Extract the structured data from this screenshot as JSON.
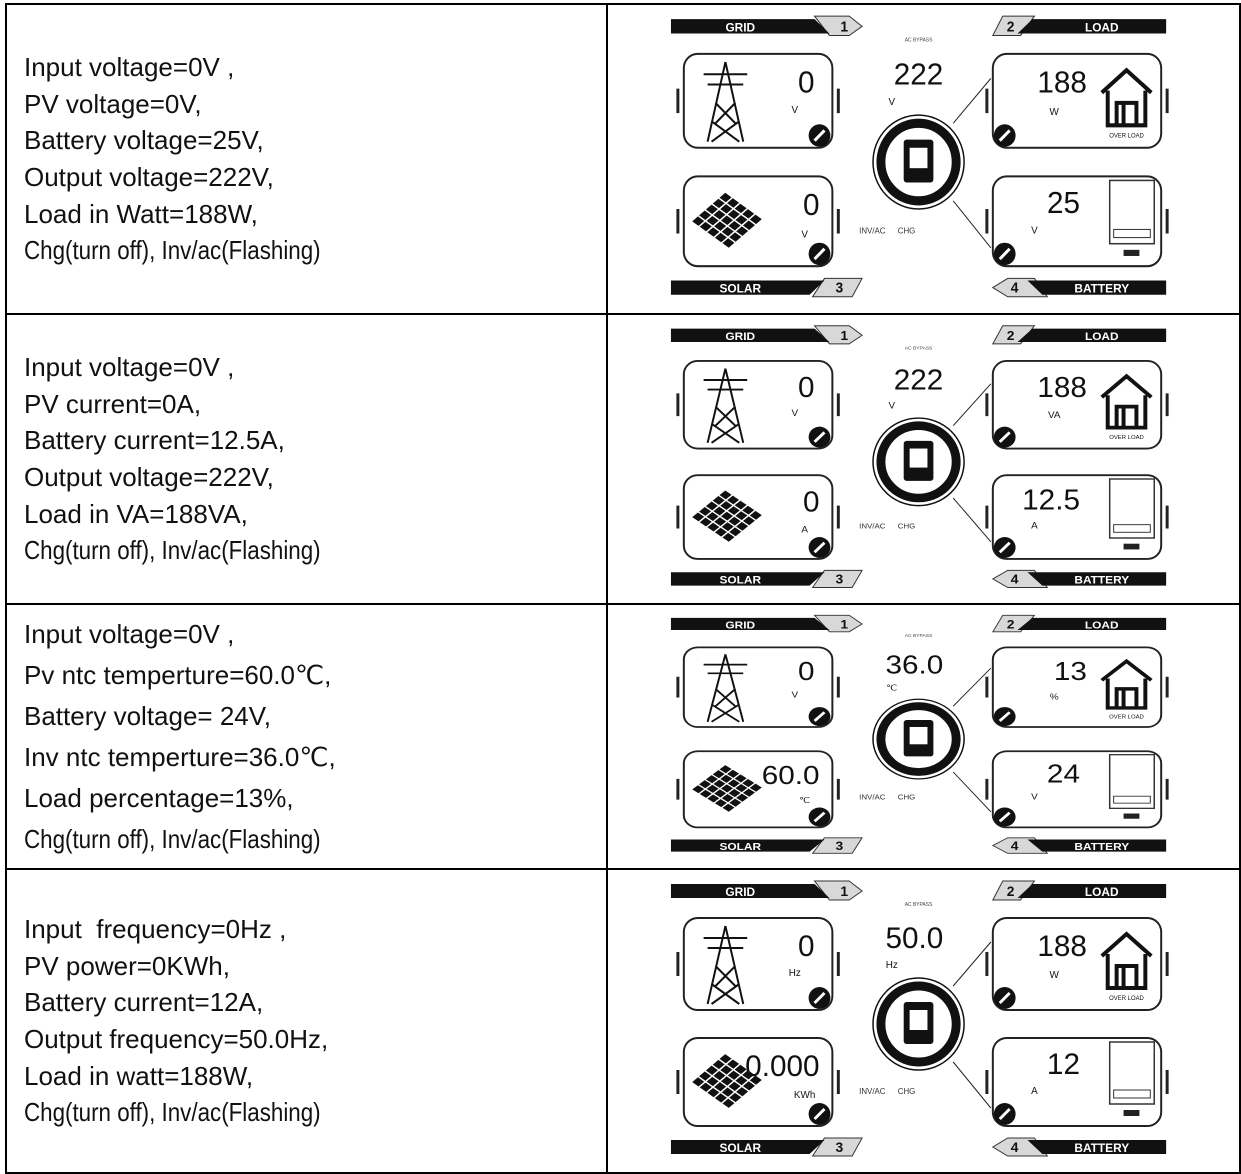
{
  "table": {
    "rows": [
      {
        "description": [
          "Input voltage=0V ,",
          "PV voltage=0V,",
          "Battery voltage=25V,",
          "Output voltage=222V,",
          "Load in Watt=188W,",
          "Chg(turn off), Inv/ac(Flashing)"
        ],
        "panel": {
          "grid": {
            "value": "0",
            "unit": "V"
          },
          "output": {
            "value": "222",
            "unit": "V"
          },
          "load": {
            "value": "188",
            "unit": "W"
          },
          "solar": {
            "value": "0",
            "unit": "V"
          },
          "battery": {
            "value": "25",
            "unit": "V"
          }
        }
      },
      {
        "description": [
          "Input voltage=0V ,",
          "PV current=0A,",
          "Battery current=12.5A,",
          "Output voltage=222V,",
          "Load in VA=188VA,",
          "Chg(turn off), Inv/ac(Flashing)"
        ],
        "panel": {
          "grid": {
            "value": "0",
            "unit": "V"
          },
          "output": {
            "value": "222",
            "unit": "V"
          },
          "load": {
            "value": "188",
            "unit": "VA"
          },
          "solar": {
            "value": "0",
            "unit": "A"
          },
          "battery": {
            "value": "12.5",
            "unit": "A"
          }
        }
      },
      {
        "description": [
          "Input voltage=0V ,",
          "Pv ntc temperture=60.0℃,",
          "Battery voltage= 24V,",
          "Inv ntc temperture=36.0℃,",
          "Load percentage=13%,",
          "Chg(turn off), Inv/ac(Flashing)"
        ],
        "panel": {
          "grid": {
            "value": "0",
            "unit": "V"
          },
          "output": {
            "value": "36.0",
            "unit": "℃"
          },
          "load": {
            "value": "13",
            "unit": "%"
          },
          "solar": {
            "value": "60.0",
            "unit": "℃"
          },
          "battery": {
            "value": "24",
            "unit": "V"
          }
        }
      },
      {
        "description": [
          "Input  frequency=0Hz ,",
          "PV power=0KWh,",
          "Battery current=12A,",
          "Output frequency=50.0Hz,",
          "Load in watt=188W,",
          "Chg(turn off), Inv/ac(Flashing)"
        ],
        "panel": {
          "grid": {
            "value": "0",
            "unit": "Hz"
          },
          "output": {
            "value": "50.0",
            "unit": "Hz"
          },
          "load": {
            "value": "188",
            "unit": "W"
          },
          "solar": {
            "value": "0.000",
            "unit": "KWh"
          },
          "battery": {
            "value": "12",
            "unit": "A"
          }
        }
      }
    ]
  },
  "panel_labels": {
    "grid": "GRID",
    "grid_no": "1",
    "load": "LOAD",
    "load_no": "2",
    "solar": "SOLAR",
    "solar_no": "3",
    "battery": "BATTERY",
    "battery_no": "4",
    "bypass": "AC BYPASS",
    "inv": "INV/AC",
    "chg": "CHG",
    "overload": "OVER LOAD"
  }
}
